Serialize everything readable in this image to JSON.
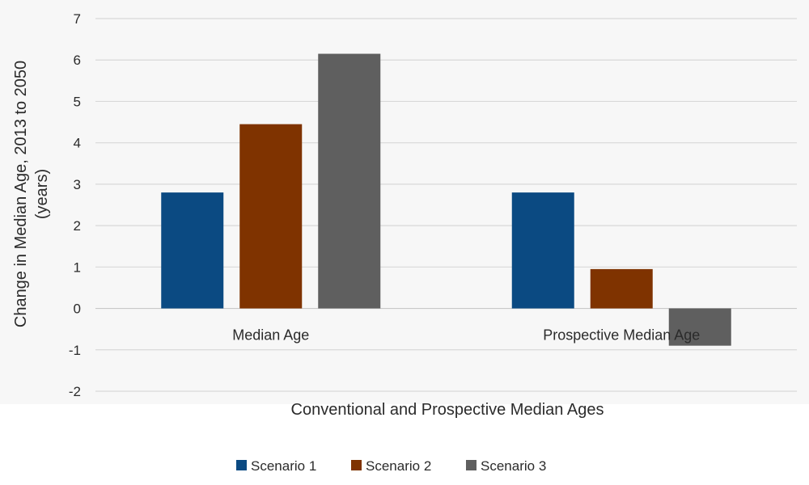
{
  "chart_data": {
    "type": "bar",
    "title": "",
    "xlabel": "Conventional and Prospective Median Ages",
    "ylabel_line1": "Change in Median Age, 2013 to 2050",
    "ylabel_line2": "(years)",
    "categories": [
      "Median Age",
      "Prospective Median Age"
    ],
    "series": [
      {
        "name": "Scenario 1",
        "color": "#0b4a82",
        "values": [
          2.8,
          2.8
        ]
      },
      {
        "name": "Scenario 2",
        "color": "#7f3300",
        "values": [
          4.45,
          0.95
        ]
      },
      {
        "name": "Scenario 3",
        "color": "#5f5f5f",
        "values": [
          6.15,
          -0.9
        ]
      }
    ],
    "ylim": [
      -2,
      7
    ],
    "yticks": [
      "-2",
      "-1",
      "0",
      "1",
      "2",
      "3",
      "4",
      "5",
      "6",
      "7"
    ],
    "grid": true,
    "legend_position": "bottom"
  }
}
